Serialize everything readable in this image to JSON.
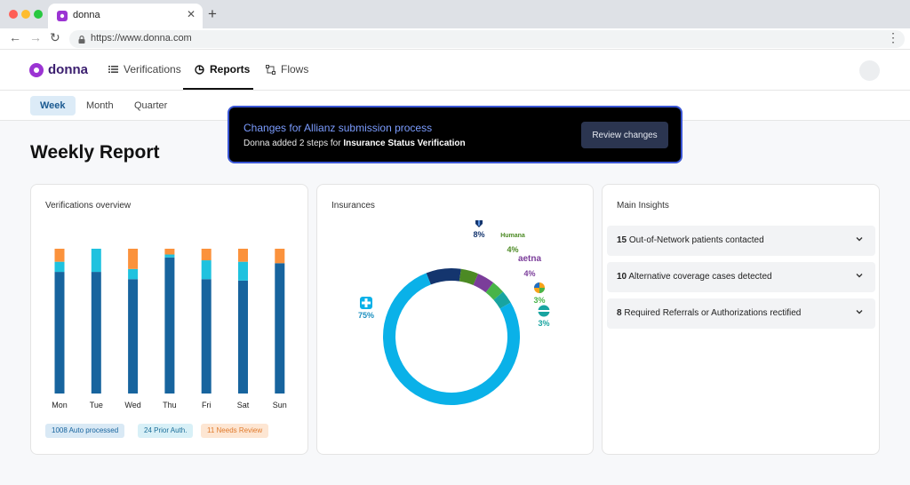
{
  "browser": {
    "tab_title": "donna",
    "url": "https://www.donna.com",
    "window_dot_colors": [
      "#ff5f57",
      "#febc2e",
      "#28c840"
    ]
  },
  "app": {
    "logo": "donna",
    "nav": [
      {
        "label": "Verifications",
        "icon": "list-icon"
      },
      {
        "label": "Reports",
        "icon": "pie-chart-icon",
        "active": true
      },
      {
        "label": "Flows",
        "icon": "flow-icon"
      }
    ]
  },
  "subnav": {
    "tabs": [
      {
        "label": "Week",
        "active": true
      },
      {
        "label": "Month"
      },
      {
        "label": "Quarter"
      }
    ]
  },
  "notification": {
    "title": "Changes for Allianz submission process",
    "message_prefix": "Donna added 2 steps for ",
    "message_bold": "Insurance Status Verification",
    "button": "Review changes"
  },
  "page": {
    "title": "Weekly Report"
  },
  "verifications": {
    "title": "Verifications overview",
    "legend": [
      {
        "label": "1008 Auto processed",
        "color": "#17649e",
        "bg": "#d9e9f5"
      },
      {
        "label": "24 Prior Auth.",
        "color": "#1b6e99",
        "bg": "#d8f0f7"
      },
      {
        "label": "11 Needs Review",
        "color": "#e07a2c",
        "bg": "#fde6d3"
      }
    ]
  },
  "chart_data": [
    {
      "type": "bar",
      "stacked": true,
      "categories": [
        "Mon",
        "Tue",
        "Wed",
        "Thu",
        "Fri",
        "Sat",
        "Sun"
      ],
      "ylim": [
        0,
        100
      ],
      "series": [
        {
          "values": [
            84,
            84,
            79,
            94,
            79,
            78,
            90
          ],
          "color": "#17649e"
        },
        {
          "values": [
            7,
            16,
            7,
            2,
            13,
            13,
            0
          ],
          "color": "#1fc2df"
        },
        {
          "values": [
            9,
            0,
            14,
            4,
            8,
            9,
            10
          ],
          "color": "#fb923c"
        }
      ]
    },
    {
      "type": "pie",
      "title": "Insurances",
      "slices": [
        {
          "value": 75,
          "label": "75%",
          "icon": "bluecross-icon",
          "color": "#0ab1e8"
        },
        {
          "value": 8,
          "label": "8%",
          "icon": "shield-icon",
          "color": "#14356e"
        },
        {
          "value": 4,
          "label": "4%",
          "logo": "Humana",
          "color": "#4c8a24"
        },
        {
          "value": 4,
          "label": "4%",
          "logo": "aetna",
          "color": "#7b3d9a"
        },
        {
          "value": 3,
          "label": "3%",
          "icon": "multicolor-icon",
          "color": "#48b448"
        },
        {
          "value": 3,
          "label": "3%",
          "icon": "globe-icon",
          "color": "#18a4a0"
        }
      ]
    }
  ],
  "insights": {
    "title": "Main Insights",
    "items": [
      {
        "count": "15",
        "text": "Out-of-Network patients contacted"
      },
      {
        "count": "10",
        "text": "Alternative coverage cases detected"
      },
      {
        "count": "8",
        "text": "Required Referrals or Authorizations rectified"
      }
    ]
  }
}
